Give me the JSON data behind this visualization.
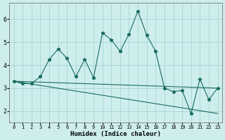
{
  "xlabel": "Humidex (Indice chaleur)",
  "background_color": "#ceeeed",
  "line_color": "#1a6b60",
  "grid_color": "#a0cece",
  "xlim": [
    -0.5,
    23.5
  ],
  "ylim": [
    1.5,
    6.7
  ],
  "yticks": [
    2,
    3,
    4,
    5,
    6
  ],
  "xticks": [
    0,
    1,
    2,
    3,
    4,
    5,
    6,
    7,
    8,
    9,
    10,
    11,
    12,
    13,
    14,
    15,
    16,
    17,
    18,
    19,
    20,
    21,
    22,
    23
  ],
  "series1_x": [
    0,
    1,
    2,
    3,
    4,
    5,
    6,
    7,
    8,
    9,
    10,
    11,
    12,
    13,
    14,
    15,
    16,
    17,
    18,
    19,
    20,
    21,
    22,
    23
  ],
  "series1_y": [
    3.3,
    3.2,
    3.2,
    3.5,
    4.25,
    4.7,
    4.3,
    3.5,
    4.25,
    3.45,
    5.4,
    5.1,
    4.6,
    5.35,
    6.35,
    5.3,
    4.6,
    3.0,
    2.85,
    2.9,
    1.9,
    3.4,
    2.5,
    3.0
  ],
  "series2_x": [
    0,
    23
  ],
  "series2_y": [
    3.3,
    3.0
  ],
  "series3_x": [
    0,
    23
  ],
  "series3_y": [
    3.3,
    1.9
  ]
}
